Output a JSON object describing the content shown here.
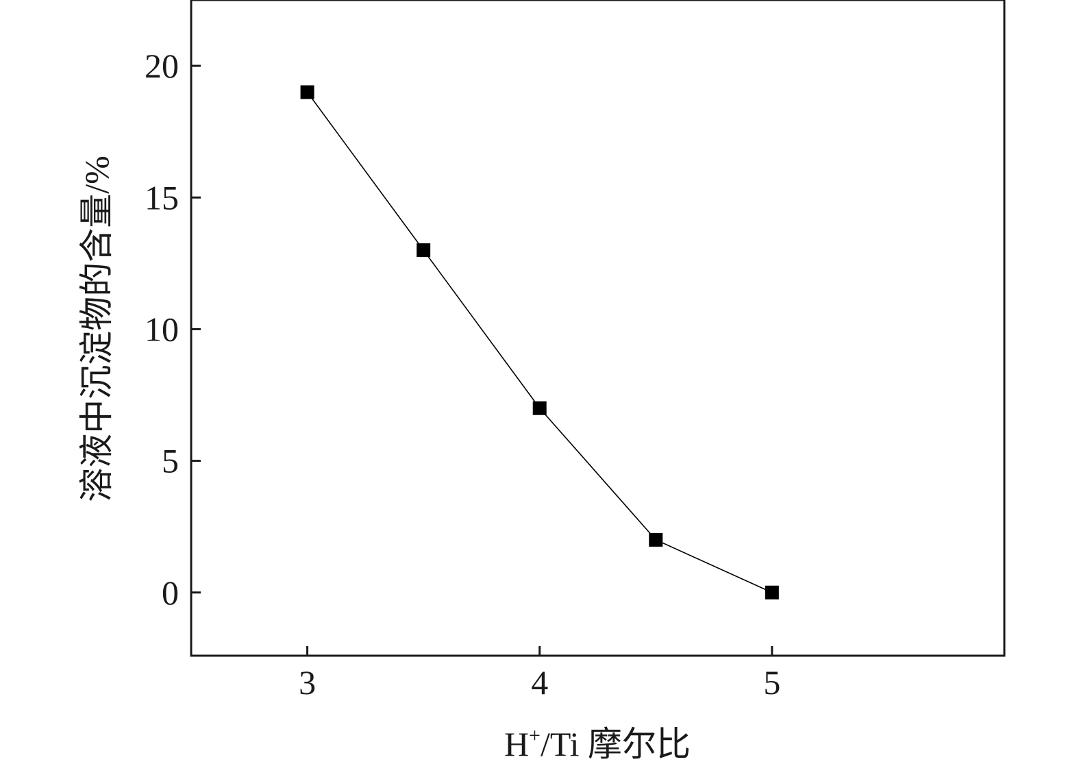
{
  "chart_data": {
    "type": "line",
    "title": "",
    "xlabel": {
      "base": "H",
      "sup": "+",
      "rest": "/Ti 摩尔比"
    },
    "ylabel": "溶液中沉淀物的含量/%",
    "xlim": [
      2.5,
      6.0
    ],
    "ylim": [
      -2.4,
      22.5
    ],
    "x_ticks": [
      3,
      4,
      5
    ],
    "x_tick_labels": [
      "3",
      "4",
      "5"
    ],
    "y_ticks": [
      0,
      5,
      10,
      15,
      20
    ],
    "y_tick_labels": [
      "0",
      "5",
      "10",
      "15",
      "20"
    ],
    "grid": false,
    "legend": "none",
    "series": [
      {
        "x": [
          3.0,
          3.5,
          4.0,
          4.5,
          5.0
        ],
        "y": [
          19.0,
          13.0,
          7.0,
          2.0,
          0.0
        ],
        "marker": "square",
        "color": "#000000"
      }
    ]
  }
}
